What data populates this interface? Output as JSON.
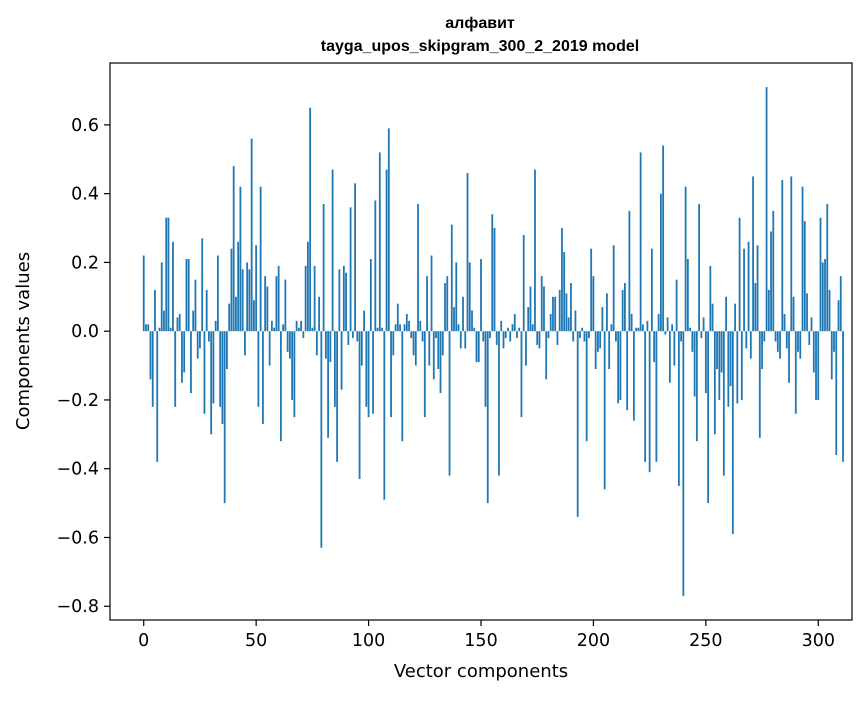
{
  "chart_data": {
    "type": "bar",
    "title": "алфавит",
    "subtitle": "tayga_upos_skipgram_300_2_2019 model",
    "xlabel": "Vector components",
    "ylabel": "Components values",
    "xlim": [
      -15,
      315
    ],
    "ylim": [
      -0.84,
      0.78
    ],
    "x_ticks": [
      0,
      50,
      100,
      150,
      200,
      250,
      300
    ],
    "y_ticks": [
      -0.8,
      -0.6,
      -0.4,
      -0.2,
      0.0,
      0.2,
      0.4,
      0.6
    ],
    "y_tick_labels": [
      "−0.8",
      "−0.6",
      "−0.4",
      "−0.2",
      "0.0",
      "0.2",
      "0.4",
      "0.6"
    ],
    "bar_color": "#1f77b4",
    "grid": false,
    "legend": "none",
    "values": [
      0.22,
      0.02,
      0.02,
      -0.14,
      -0.22,
      0.12,
      -0.38,
      0.01,
      0.2,
      0.06,
      0.33,
      0.33,
      0.01,
      0.26,
      -0.22,
      0.04,
      0.05,
      -0.15,
      -0.12,
      0.21,
      0.21,
      -0.18,
      0.06,
      0.15,
      -0.08,
      -0.05,
      0.27,
      -0.24,
      0.12,
      -0.03,
      -0.3,
      -0.21,
      0.03,
      0.22,
      -0.22,
      -0.27,
      -0.5,
      -0.11,
      0.08,
      0.24,
      0.48,
      0.1,
      0.26,
      0.42,
      0.18,
      -0.07,
      0.2,
      0.18,
      0.56,
      0.09,
      0.25,
      -0.22,
      0.42,
      -0.27,
      0.16,
      0.13,
      -0.1,
      0.03,
      0.01,
      0.16,
      0.19,
      -0.32,
      0.02,
      0.15,
      -0.06,
      -0.08,
      -0.2,
      -0.25,
      0.03,
      0.01,
      0.03,
      -0.02,
      0.19,
      0.26,
      0.65,
      0.01,
      0.19,
      -0.07,
      0.1,
      -0.63,
      0.37,
      -0.08,
      -0.31,
      -0.09,
      0.47,
      -0.22,
      -0.38,
      0.18,
      -0.17,
      0.19,
      0.17,
      -0.04,
      0.36,
      -0.02,
      0.43,
      -0.03,
      -0.43,
      -0.1,
      0.06,
      -0.22,
      -0.25,
      0.21,
      -0.24,
      0.38,
      0.01,
      0.52,
      0.01,
      -0.49,
      0.47,
      0.59,
      -0.25,
      -0.07,
      0.02,
      0.08,
      0.02,
      -0.32,
      0.02,
      0.05,
      0.03,
      -0.02,
      -0.07,
      -0.1,
      0.37,
      0.03,
      -0.03,
      -0.25,
      0.16,
      -0.1,
      0.22,
      -0.14,
      -0.02,
      -0.11,
      -0.18,
      -0.07,
      0.14,
      0.16,
      -0.42,
      0.31,
      0.07,
      0.2,
      0.02,
      -0.05,
      0.1,
      -0.05,
      0.46,
      0.2,
      0.06,
      0.01,
      -0.09,
      -0.09,
      0.21,
      -0.03,
      -0.22,
      -0.5,
      -0.02,
      0.34,
      0.3,
      -0.04,
      -0.42,
      0.03,
      -0.05,
      -0.02,
      0.01,
      -0.03,
      0.02,
      0.05,
      -0.02,
      0.01,
      -0.25,
      0.28,
      -0.1,
      0.07,
      0.13,
      0.02,
      0.47,
      -0.04,
      -0.05,
      0.16,
      0.13,
      -0.14,
      -0.02,
      0.05,
      0.1,
      0.1,
      -0.04,
      0.12,
      0.3,
      0.23,
      0.11,
      0.04,
      0.14,
      -0.03,
      0.06,
      -0.54,
      -0.02,
      0.01,
      -0.03,
      -0.32,
      -0.02,
      0.24,
      0.16,
      -0.11,
      -0.06,
      -0.05,
      0.07,
      -0.46,
      0.11,
      -0.11,
      0.02,
      0.25,
      -0.03,
      -0.21,
      -0.2,
      0.12,
      0.14,
      -0.23,
      0.35,
      0.05,
      -0.26,
      0.01,
      0.01,
      0.52,
      0.02,
      -0.38,
      0.03,
      -0.41,
      0.24,
      -0.09,
      -0.38,
      0.05,
      0.4,
      0.54,
      -0.01,
      0.04,
      -0.15,
      0.02,
      -0.1,
      0.15,
      -0.45,
      -0.03,
      -0.77,
      0.42,
      0.21,
      0.01,
      -0.06,
      -0.19,
      -0.32,
      0.37,
      -0.02,
      0.04,
      -0.18,
      -0.5,
      0.19,
      0.08,
      -0.3,
      -0.11,
      -0.2,
      -0.12,
      -0.42,
      0.1,
      -0.22,
      -0.16,
      -0.59,
      0.08,
      -0.21,
      0.33,
      -0.2,
      0.24,
      -0.05,
      0.26,
      -0.08,
      0.45,
      0.14,
      0.25,
      -0.31,
      -0.11,
      -0.03,
      0.71,
      0.12,
      0.29,
      0.35,
      -0.03,
      -0.06,
      -0.08,
      0.44,
      0.05,
      -0.05,
      -0.15,
      0.45,
      0.1,
      -0.24,
      -0.06,
      -0.08,
      0.42,
      0.32,
      0.11,
      -0.04,
      0.04,
      -0.12,
      -0.2,
      -0.2,
      0.33,
      0.2,
      0.21,
      0.37,
      0.12,
      -0.14,
      -0.06,
      -0.36,
      0.09,
      0.16,
      -0.38
    ]
  }
}
